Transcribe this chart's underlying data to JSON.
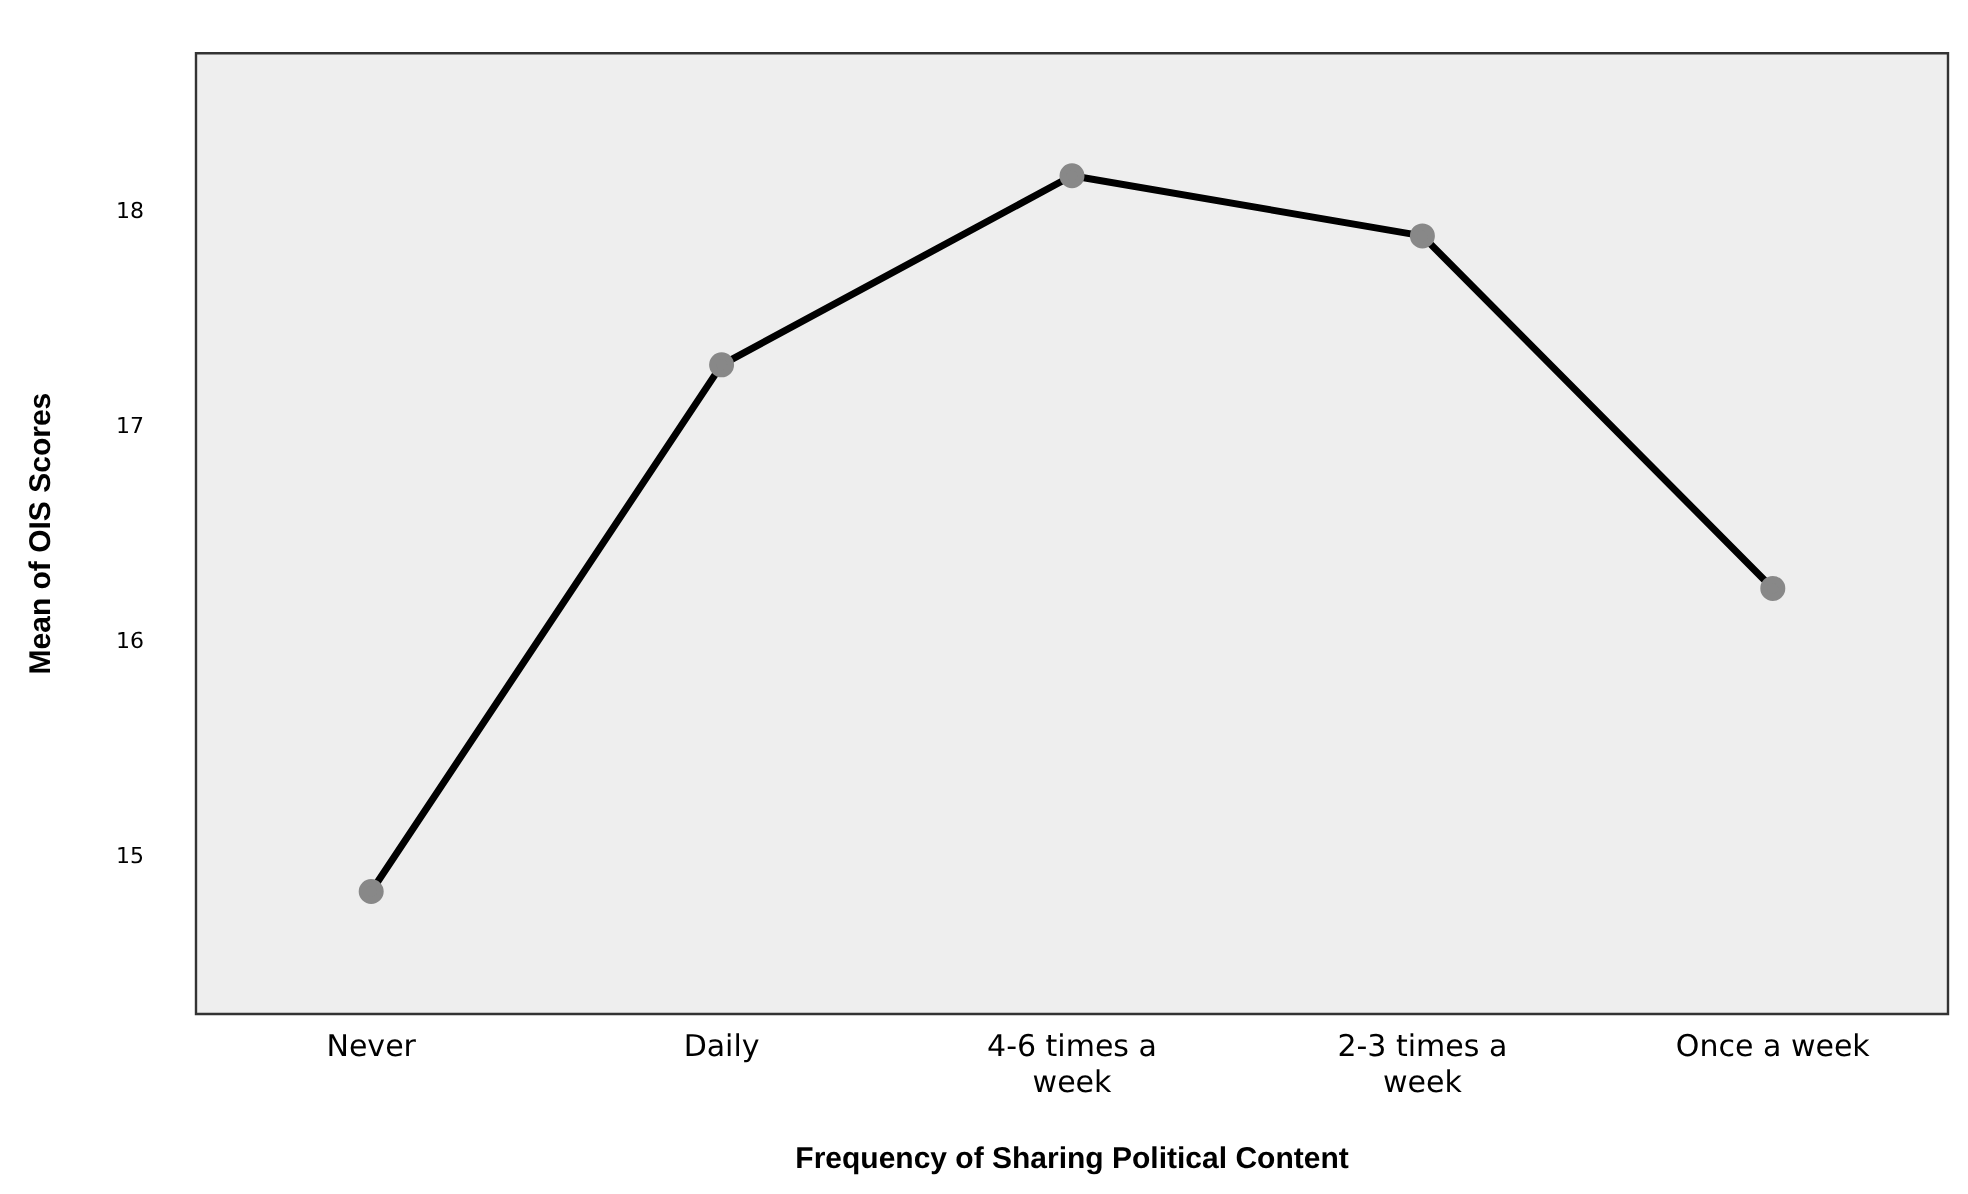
{
  "chart_data": {
    "type": "line",
    "xlabel": "Frequency of Sharing Political Content",
    "ylabel": "Mean of OIS Scores",
    "categories": [
      "Never",
      "Daily",
      "4-6 times a week",
      "2-3 times a week",
      "Once a week"
    ],
    "series": [
      {
        "color": "#000000",
        "values": [
          14.84,
          17.29,
          18.17,
          17.89,
          16.25
        ]
      }
    ],
    "ylim": [
      14.27,
      18.74
    ],
    "yticks": [
      15,
      16,
      17,
      18
    ],
    "grid": false,
    "legend": false,
    "marker": "circle",
    "line_style": "solid"
  }
}
